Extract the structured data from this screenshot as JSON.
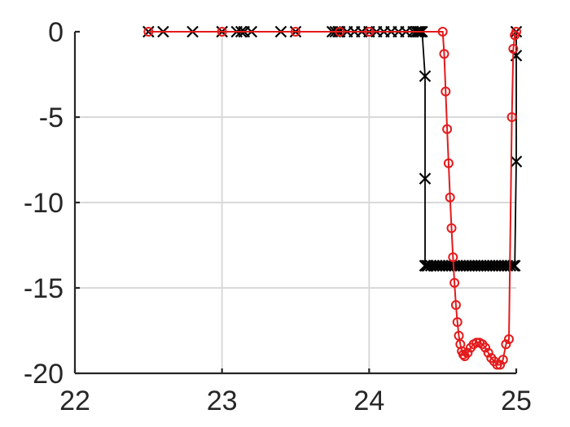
{
  "chart_data": {
    "type": "line",
    "title": "",
    "xlabel": "",
    "ylabel": "",
    "xlim": [
      22,
      25
    ],
    "ylim": [
      -20,
      0
    ],
    "xticks": [
      "22",
      "23",
      "24",
      "25"
    ],
    "yticks": [
      "0",
      "-5",
      "-10",
      "-15",
      "-20"
    ],
    "xtick_values": [
      22,
      23,
      24,
      25
    ],
    "ytick_values": [
      0,
      -5,
      -10,
      -15,
      -20
    ],
    "grid": true,
    "colors": {
      "series_black": "#000000",
      "series_red": "#e41a1c",
      "axis": "#262626",
      "grid": "#d9d9d9"
    },
    "series": [
      {
        "marker": "x",
        "color": "#000000",
        "x": [
          22.5,
          22.6,
          22.8,
          23.0,
          23.1,
          23.13,
          23.15,
          23.2,
          23.4,
          23.5,
          23.75,
          23.77,
          23.79,
          23.8,
          23.85,
          23.9,
          23.95,
          24.0,
          24.05,
          24.1,
          24.15,
          24.2,
          24.25,
          24.3,
          24.32,
          24.33,
          24.34,
          24.35,
          24.36,
          24.38,
          24.38,
          24.38,
          24.39,
          24.4,
          24.42,
          24.44,
          24.46,
          24.48,
          24.5,
          24.52,
          24.54,
          24.56,
          24.58,
          24.6,
          24.62,
          24.64,
          24.66,
          24.68,
          24.7,
          24.72,
          24.74,
          24.76,
          24.78,
          24.8,
          24.82,
          24.84,
          24.86,
          24.88,
          24.9,
          24.92,
          24.94,
          24.96,
          24.98,
          24.99,
          25.0,
          25.0,
          25.0
        ],
        "y": [
          0,
          0,
          0,
          0,
          0,
          0,
          0,
          0,
          0,
          0,
          0,
          0,
          0,
          0,
          0,
          0,
          0,
          0,
          0,
          0,
          0,
          0,
          0,
          0,
          0,
          0,
          0,
          0,
          0,
          -2.6,
          -8.6,
          -13.7,
          -13.7,
          -13.7,
          -13.7,
          -13.7,
          -13.7,
          -13.7,
          -13.7,
          -13.7,
          -13.7,
          -13.7,
          -13.7,
          -13.7,
          -13.7,
          -13.7,
          -13.7,
          -13.7,
          -13.7,
          -13.7,
          -13.7,
          -13.7,
          -13.7,
          -13.7,
          -13.7,
          -13.7,
          -13.7,
          -13.7,
          -13.7,
          -13.7,
          -13.7,
          -13.7,
          -13.7,
          -13.7,
          -7.6,
          -1.4,
          0
        ]
      },
      {
        "marker": "o",
        "color": "#e41a1c",
        "x": [
          22.5,
          23.0,
          23.5,
          23.8,
          24.0,
          24.5,
          24.51,
          24.52,
          24.53,
          24.54,
          24.55,
          24.56,
          24.57,
          24.58,
          24.59,
          24.6,
          24.61,
          24.62,
          24.63,
          24.64,
          24.65,
          24.67,
          24.69,
          24.71,
          24.73,
          24.75,
          24.77,
          24.79,
          24.81,
          24.83,
          24.85,
          24.87,
          24.89,
          24.91,
          24.93,
          24.95,
          24.97,
          24.98,
          24.99,
          25.0
        ],
        "y": [
          0,
          0,
          0,
          0,
          0,
          0,
          -1.3,
          -3.5,
          -5.7,
          -7.7,
          -9.7,
          -11.5,
          -13.2,
          -14.7,
          -16.0,
          -17.0,
          -17.8,
          -18.3,
          -18.7,
          -18.9,
          -19.0,
          -18.8,
          -18.5,
          -18.3,
          -18.2,
          -18.2,
          -18.3,
          -18.5,
          -18.8,
          -19.1,
          -19.3,
          -19.5,
          -19.5,
          -19.2,
          -18.3,
          -18.0,
          -5.0,
          -1.0,
          -0.2,
          0
        ]
      }
    ]
  }
}
